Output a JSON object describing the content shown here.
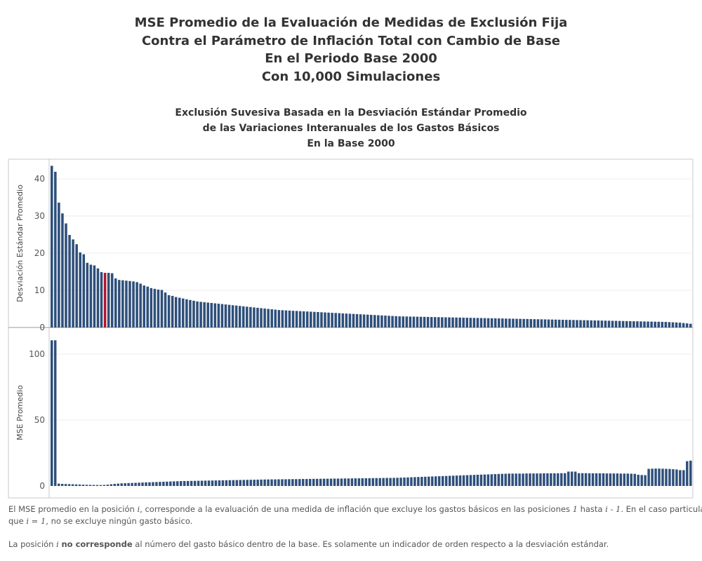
{
  "title_lines": [
    "MSE Promedio de la Evaluación de Medidas de Exclusión Fija",
    "Contra el Parámetro de Inflación Total con Cambio de Base",
    "En el Periodo Base 2000",
    "Con 10,000 Simulaciones"
  ],
  "subtitle_lines": [
    "Exclusión Suvesiva Basada en la Desviación Estándar Promedio",
    "de las Variaciones Interanuales de los Gastos Básicos",
    "En la Base 2000"
  ],
  "colors": {
    "bar": "#2e4f7a",
    "highlight": "#b3142b",
    "grid": "#ececec",
    "border": "#c8c8c8"
  },
  "chart_data": [
    {
      "type": "bar",
      "ylabel": "Desviación Estándar Promedio",
      "yticks": [
        0,
        10,
        20,
        30,
        40
      ],
      "ylim": [
        0,
        44
      ],
      "highlight_index": 15,
      "values": [
        43.5,
        41.9,
        33.6,
        30.7,
        28.0,
        24.9,
        23.7,
        22.4,
        20.2,
        19.7,
        17.4,
        16.9,
        16.7,
        15.9,
        14.9,
        14.7,
        14.7,
        14.6,
        13.2,
        12.8,
        12.7,
        12.6,
        12.5,
        12.4,
        12.2,
        11.8,
        11.3,
        11.0,
        10.6,
        10.4,
        10.2,
        10.1,
        9.4,
        8.7,
        8.5,
        8.2,
        8.0,
        7.8,
        7.6,
        7.4,
        7.2,
        7.0,
        6.9,
        6.8,
        6.7,
        6.6,
        6.5,
        6.4,
        6.3,
        6.2,
        6.1,
        6.0,
        5.9,
        5.8,
        5.7,
        5.6,
        5.5,
        5.4,
        5.3,
        5.2,
        5.1,
        5.0,
        4.9,
        4.8,
        4.7,
        4.65,
        4.6,
        4.55,
        4.5,
        4.45,
        4.4,
        4.35,
        4.3,
        4.25,
        4.2,
        4.15,
        4.1,
        4.05,
        4.0,
        3.95,
        3.9,
        3.85,
        3.8,
        3.75,
        3.7,
        3.65,
        3.6,
        3.55,
        3.5,
        3.45,
        3.4,
        3.35,
        3.3,
        3.25,
        3.2,
        3.15,
        3.1,
        3.05,
        3.0,
        2.98,
        2.96,
        2.94,
        2.92,
        2.9,
        2.88,
        2.86,
        2.84,
        2.82,
        2.8,
        2.78,
        2.76,
        2.74,
        2.72,
        2.7,
        2.68,
        2.66,
        2.64,
        2.62,
        2.6,
        2.58,
        2.56,
        2.54,
        2.52,
        2.5,
        2.48,
        2.46,
        2.44,
        2.42,
        2.4,
        2.38,
        2.36,
        2.34,
        2.32,
        2.3,
        2.28,
        2.26,
        2.24,
        2.22,
        2.2,
        2.18,
        2.16,
        2.14,
        2.12,
        2.1,
        2.08,
        2.06,
        2.04,
        2.02,
        2.0,
        1.98,
        1.96,
        1.94,
        1.92,
        1.9,
        1.88,
        1.86,
        1.84,
        1.82,
        1.8,
        1.78,
        1.76,
        1.74,
        1.72,
        1.7,
        1.68,
        1.66,
        1.64,
        1.62,
        1.6,
        1.58,
        1.56,
        1.54,
        1.52,
        1.5,
        1.45,
        1.4,
        1.35,
        1.3,
        1.2,
        1.1,
        1.0
      ]
    },
    {
      "type": "bar",
      "ylabel": "MSE Promedio",
      "yticks": [
        0,
        50,
        100
      ],
      "ylim": [
        0,
        112
      ],
      "values": [
        110.5,
        110.5,
        1.8,
        1.6,
        1.5,
        1.4,
        1.3,
        1.2,
        1.1,
        1.0,
        0.9,
        0.85,
        0.8,
        0.75,
        0.7,
        0.8,
        1.0,
        1.3,
        1.6,
        1.8,
        2.0,
        2.1,
        2.2,
        2.3,
        2.4,
        2.5,
        2.6,
        2.7,
        2.8,
        2.9,
        3.0,
        3.1,
        3.2,
        3.3,
        3.4,
        3.5,
        3.6,
        3.7,
        3.75,
        3.8,
        3.85,
        3.9,
        3.95,
        4.0,
        4.05,
        4.1,
        4.15,
        4.2,
        4.25,
        4.3,
        4.35,
        4.4,
        4.45,
        4.5,
        4.55,
        4.6,
        4.65,
        4.7,
        4.75,
        4.8,
        4.85,
        4.9,
        4.95,
        5.0,
        5.0,
        5.05,
        5.1,
        5.1,
        5.15,
        5.2,
        5.2,
        5.25,
        5.3,
        5.3,
        5.35,
        5.4,
        5.4,
        5.45,
        5.5,
        5.5,
        5.55,
        5.6,
        5.6,
        5.65,
        5.7,
        5.7,
        5.75,
        5.8,
        5.8,
        5.85,
        5.9,
        5.9,
        5.95,
        6.0,
        6.0,
        6.05,
        6.1,
        6.1,
        6.15,
        6.2,
        6.3,
        6.4,
        6.5,
        6.6,
        6.7,
        6.8,
        6.9,
        7.0,
        7.1,
        7.2,
        7.3,
        7.4,
        7.5,
        7.6,
        7.7,
        7.8,
        7.9,
        8.0,
        8.1,
        8.2,
        8.3,
        8.4,
        8.5,
        8.6,
        8.7,
        8.8,
        8.9,
        9.0,
        9.1,
        9.2,
        9.3,
        9.4,
        9.4,
        9.4,
        9.4,
        9.4,
        9.5,
        9.5,
        9.5,
        9.5,
        9.5,
        9.6,
        9.6,
        9.6,
        9.6,
        9.6,
        9.7,
        9.7,
        10.9,
        10.9,
        10.9,
        9.7,
        9.7,
        9.7,
        9.6,
        9.6,
        9.6,
        9.6,
        9.6,
        9.5,
        9.5,
        9.5,
        9.5,
        9.4,
        9.4,
        9.4,
        9.3,
        9.2,
        8.5,
        8.3,
        8.2,
        13.0,
        13.1,
        13.2,
        13.2,
        13.1,
        13.0,
        12.9,
        12.7,
        12.5,
        12.0,
        12.0,
        18.8,
        19.2
      ]
    }
  ],
  "footnote": {
    "l1_a": "El MSE promedio en la posición ",
    "l1_b": "i",
    "l1_c": ", corresponde a la evaluación de una medida de inflación que excluye los gastos básicos en las posiciones ",
    "l1_d": "1",
    "l1_e": " hasta  ",
    "l1_f": "i - 1",
    "l1_g": ". En el caso particular",
    "l2_a": "que ",
    "l2_b": "i = 1",
    "l2_c": ", no se excluye ningún gasto básico.",
    "l3_a": "La posición ",
    "l3_b": "i",
    "l3_c": "no corresponde",
    "l3_d": " al número del gasto básico dentro de la base. Es solamente un indicador de orden respecto a la desviación estándar."
  }
}
